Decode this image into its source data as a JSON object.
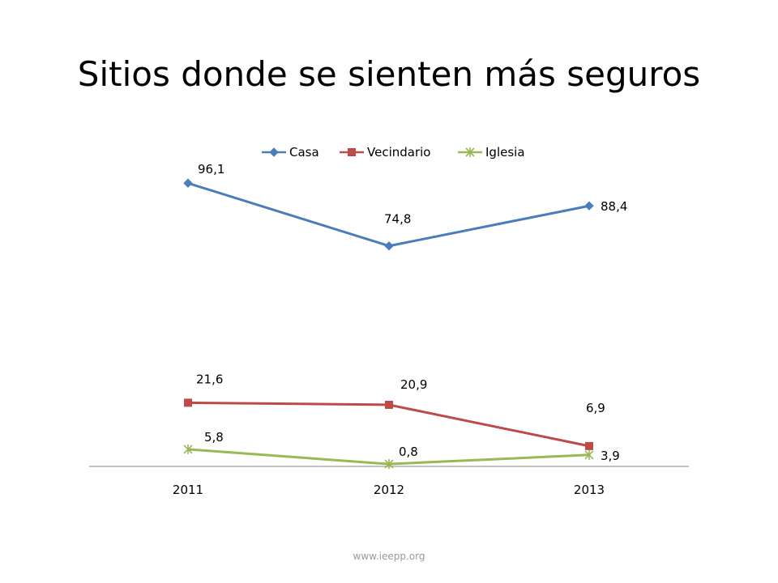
{
  "slide": {
    "title": "Sitios donde se sienten más seguros",
    "footer": "www.ieepp.org"
  },
  "chart_data": {
    "type": "line",
    "title": "",
    "xlabel": "",
    "ylabel": "",
    "categories": [
      "2011",
      "2012",
      "2013"
    ],
    "ylim": [
      0,
      100
    ],
    "grid": false,
    "legend_position": "top-center",
    "series": [
      {
        "name": "Casa",
        "values": [
          96.1,
          74.8,
          88.4
        ],
        "labels": [
          "96,1",
          "74,8",
          "88,4"
        ],
        "color": "#4a7ebb",
        "marker": "diamond"
      },
      {
        "name": "Vecindario",
        "values": [
          21.6,
          20.9,
          6.9
        ],
        "labels": [
          "21,6",
          "20,9",
          "6,9"
        ],
        "color": "#be4b48",
        "marker": "square"
      },
      {
        "name": "Iglesia",
        "values": [
          5.8,
          0.8,
          3.9
        ],
        "labels": [
          "5,8",
          "0,8",
          "3,9"
        ],
        "color": "#98b954",
        "marker": "star"
      }
    ]
  }
}
